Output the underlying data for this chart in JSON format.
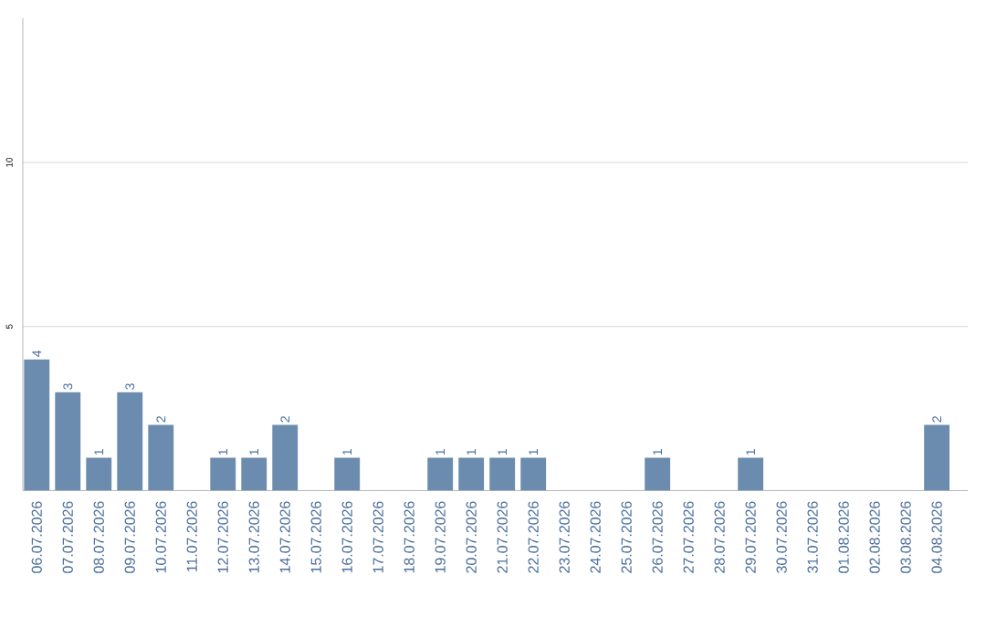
{
  "chart_data": {
    "type": "bar",
    "categories": [
      "06.07.2026",
      "07.07.2026",
      "08.07.2026",
      "09.07.2026",
      "10.07.2026",
      "11.07.2026",
      "12.07.2026",
      "13.07.2026",
      "14.07.2026",
      "15.07.2026",
      "16.07.2026",
      "17.07.2026",
      "18.07.2026",
      "19.07.2026",
      "20.07.2026",
      "21.07.2026",
      "22.07.2026",
      "23.07.2026",
      "24.07.2026",
      "25.07.2026",
      "26.07.2026",
      "27.07.2026",
      "28.07.2026",
      "29.07.2026",
      "30.07.2026",
      "31.07.2026",
      "01.08.2026",
      "02.08.2026",
      "03.08.2026",
      "04.08.2026"
    ],
    "values": [
      4,
      3,
      1,
      3,
      2,
      0,
      1,
      1,
      2,
      0,
      1,
      0,
      0,
      1,
      1,
      1,
      1,
      0,
      0,
      0,
      1,
      0,
      0,
      1,
      0,
      0,
      0,
      0,
      0,
      2
    ],
    "value_labels": [
      "4",
      "3",
      "1",
      "3",
      "2",
      null,
      "1",
      "1",
      "2",
      null,
      "1",
      null,
      null,
      "1",
      "1",
      "1",
      "1",
      null,
      null,
      null,
      "1",
      null,
      null,
      "1",
      null,
      null,
      null,
      null,
      null,
      "2"
    ],
    "color": "#6b8cae",
    "ylim": [
      0,
      14.4
    ],
    "yticks": [
      5,
      10
    ],
    "grid": "y"
  }
}
